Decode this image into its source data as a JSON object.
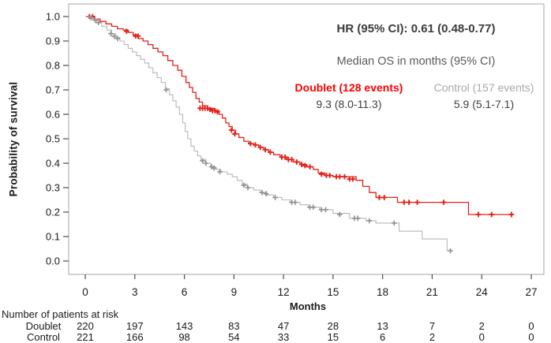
{
  "annotations": {
    "hr": "HR (95% CI): 0.61 (0.48-0.77)",
    "median_header": "Median OS in months (95% CI)",
    "doublet_label": "Doublet (128 events)",
    "doublet_median": "9.3 (8.0-11.3)",
    "control_label": "Control (157 events)",
    "control_median": "5.9 (5.1-7.1)"
  },
  "colors": {
    "doublet": "#e2231a",
    "doublet_text": "#ff0000",
    "control": "#b7b7b7",
    "control_censor": "#8f8f8f",
    "control_text": "#a9a9a9",
    "axis": "#4d4d4d",
    "box_border": "#a6a6a6"
  },
  "risk_table": {
    "title": "Number of patients at risk",
    "rows": [
      {
        "label": "Doublet",
        "counts": [
          220,
          197,
          143,
          83,
          47,
          28,
          13,
          7,
          2,
          0
        ]
      },
      {
        "label": "Control",
        "counts": [
          221,
          166,
          98,
          54,
          33,
          15,
          6,
          2,
          0,
          0
        ]
      }
    ]
  },
  "chart_data": {
    "type": "line",
    "subtype": "kaplan-meier-step",
    "title": "",
    "xlabel": "Months",
    "ylabel": "Probability of survival",
    "xlim": [
      0,
      27
    ],
    "ylim": [
      0.0,
      1.0
    ],
    "x_ticks": [
      0,
      3,
      6,
      9,
      12,
      15,
      18,
      21,
      24,
      27
    ],
    "y_ticks": [
      1.0,
      0.9,
      0.8,
      0.7,
      0.6,
      0.5,
      0.4,
      0.3,
      0.2,
      0.1,
      0.0
    ],
    "grid": false,
    "legend_position": "none",
    "series": [
      {
        "name": "Doublet",
        "events": 128,
        "median_os": "9.3 (8.0-11.3)",
        "hr_vs_control": "0.61 (0.48-0.77)",
        "step_points": [
          [
            0,
            1.0
          ],
          [
            0.55,
            0.99
          ],
          [
            0.9,
            0.98
          ],
          [
            1.25,
            0.97
          ],
          [
            1.6,
            0.96
          ],
          [
            1.95,
            0.95
          ],
          [
            2.3,
            0.945
          ],
          [
            2.6,
            0.935
          ],
          [
            2.9,
            0.925
          ],
          [
            3.2,
            0.91
          ],
          [
            3.5,
            0.9
          ],
          [
            3.8,
            0.885
          ],
          [
            4.1,
            0.87
          ],
          [
            4.4,
            0.855
          ],
          [
            4.7,
            0.84
          ],
          [
            5.0,
            0.82
          ],
          [
            5.3,
            0.8
          ],
          [
            5.6,
            0.78
          ],
          [
            5.85,
            0.755
          ],
          [
            6.1,
            0.73
          ],
          [
            6.3,
            0.71
          ],
          [
            6.5,
            0.69
          ],
          [
            6.7,
            0.665
          ],
          [
            6.9,
            0.65
          ],
          [
            7.1,
            0.635
          ],
          [
            7.4,
            0.625
          ],
          [
            7.8,
            0.615
          ],
          [
            8.1,
            0.6
          ],
          [
            8.3,
            0.585
          ],
          [
            8.5,
            0.565
          ],
          [
            8.7,
            0.55
          ],
          [
            8.9,
            0.535
          ],
          [
            9.1,
            0.52
          ],
          [
            9.3,
            0.505
          ],
          [
            9.6,
            0.49
          ],
          [
            9.9,
            0.48
          ],
          [
            10.2,
            0.475
          ],
          [
            10.5,
            0.465
          ],
          [
            10.8,
            0.455
          ],
          [
            11.1,
            0.445
          ],
          [
            11.4,
            0.435
          ],
          [
            11.8,
            0.425
          ],
          [
            12.2,
            0.415
          ],
          [
            12.6,
            0.405
          ],
          [
            13.0,
            0.395
          ],
          [
            13.4,
            0.385
          ],
          [
            13.8,
            0.375
          ],
          [
            14.1,
            0.36
          ],
          [
            14.5,
            0.35
          ],
          [
            15.0,
            0.345
          ],
          [
            16.4,
            0.33
          ],
          [
            16.8,
            0.305
          ],
          [
            17.2,
            0.28
          ],
          [
            17.6,
            0.26
          ],
          [
            18.9,
            0.24
          ],
          [
            23.2,
            0.19
          ],
          [
            25.9,
            0.19
          ]
        ],
        "censor_points": [
          [
            0.25,
            1.0
          ],
          [
            0.45,
            1.0
          ],
          [
            2.5,
            0.94
          ],
          [
            3.05,
            0.92
          ],
          [
            3.2,
            0.92
          ],
          [
            6.95,
            0.625
          ],
          [
            7.1,
            0.625
          ],
          [
            7.25,
            0.625
          ],
          [
            7.4,
            0.625
          ],
          [
            7.55,
            0.62
          ],
          [
            7.7,
            0.615
          ],
          [
            7.85,
            0.615
          ],
          [
            8.0,
            0.61
          ],
          [
            8.85,
            0.535
          ],
          [
            9.05,
            0.52
          ],
          [
            10.0,
            0.48
          ],
          [
            10.3,
            0.475
          ],
          [
            10.6,
            0.465
          ],
          [
            10.9,
            0.455
          ],
          [
            11.2,
            0.445
          ],
          [
            11.9,
            0.425
          ],
          [
            12.1,
            0.425
          ],
          [
            12.3,
            0.415
          ],
          [
            12.5,
            0.415
          ],
          [
            12.8,
            0.405
          ],
          [
            13.1,
            0.395
          ],
          [
            13.3,
            0.39
          ],
          [
            13.6,
            0.385
          ],
          [
            14.3,
            0.355
          ],
          [
            14.6,
            0.35
          ],
          [
            14.8,
            0.35
          ],
          [
            15.2,
            0.345
          ],
          [
            15.4,
            0.345
          ],
          [
            15.7,
            0.345
          ],
          [
            16.0,
            0.335
          ],
          [
            16.2,
            0.335
          ],
          [
            17.8,
            0.26
          ],
          [
            18.1,
            0.26
          ],
          [
            19.3,
            0.24
          ],
          [
            19.6,
            0.24
          ],
          [
            20.1,
            0.24
          ],
          [
            21.7,
            0.24
          ],
          [
            23.8,
            0.19
          ],
          [
            24.6,
            0.19
          ],
          [
            25.8,
            0.19
          ]
        ]
      },
      {
        "name": "Control",
        "events": 157,
        "median_os": "5.9 (5.1-7.1)",
        "step_points": [
          [
            0,
            1.0
          ],
          [
            0.4,
            0.99
          ],
          [
            0.7,
            0.975
          ],
          [
            1.0,
            0.96
          ],
          [
            1.3,
            0.945
          ],
          [
            1.6,
            0.93
          ],
          [
            1.85,
            0.915
          ],
          [
            2.1,
            0.9
          ],
          [
            2.35,
            0.885
          ],
          [
            2.6,
            0.87
          ],
          [
            2.85,
            0.855
          ],
          [
            3.1,
            0.84
          ],
          [
            3.35,
            0.825
          ],
          [
            3.6,
            0.81
          ],
          [
            3.85,
            0.79
          ],
          [
            4.1,
            0.77
          ],
          [
            4.35,
            0.75
          ],
          [
            4.6,
            0.73
          ],
          [
            4.85,
            0.705
          ],
          [
            5.1,
            0.68
          ],
          [
            5.3,
            0.655
          ],
          [
            5.5,
            0.63
          ],
          [
            5.7,
            0.6
          ],
          [
            5.9,
            0.565
          ],
          [
            6.05,
            0.53
          ],
          [
            6.2,
            0.5
          ],
          [
            6.4,
            0.47
          ],
          [
            6.6,
            0.45
          ],
          [
            6.8,
            0.43
          ],
          [
            7.0,
            0.415
          ],
          [
            7.3,
            0.4
          ],
          [
            7.6,
            0.385
          ],
          [
            7.9,
            0.375
          ],
          [
            8.2,
            0.365
          ],
          [
            8.6,
            0.355
          ],
          [
            8.9,
            0.345
          ],
          [
            9.2,
            0.33
          ],
          [
            9.5,
            0.315
          ],
          [
            9.8,
            0.3
          ],
          [
            10.2,
            0.29
          ],
          [
            10.6,
            0.28
          ],
          [
            11.0,
            0.27
          ],
          [
            11.4,
            0.26
          ],
          [
            11.9,
            0.25
          ],
          [
            12.4,
            0.24
          ],
          [
            13.0,
            0.23
          ],
          [
            13.5,
            0.22
          ],
          [
            14.2,
            0.21
          ],
          [
            15.0,
            0.195
          ],
          [
            16.0,
            0.175
          ],
          [
            17.0,
            0.165
          ],
          [
            17.6,
            0.155
          ],
          [
            19.0,
            0.122
          ],
          [
            20.4,
            0.09
          ],
          [
            21.9,
            0.042
          ],
          [
            22.2,
            0.042
          ]
        ],
        "censor_points": [
          [
            0.35,
            0.995
          ],
          [
            0.6,
            0.985
          ],
          [
            0.8,
            0.975
          ],
          [
            1.55,
            0.93
          ],
          [
            1.75,
            0.92
          ],
          [
            1.95,
            0.91
          ],
          [
            4.9,
            0.7
          ],
          [
            7.1,
            0.41
          ],
          [
            7.3,
            0.4
          ],
          [
            7.65,
            0.385
          ],
          [
            7.8,
            0.38
          ],
          [
            8.15,
            0.365
          ],
          [
            9.6,
            0.31
          ],
          [
            9.85,
            0.3
          ],
          [
            10.7,
            0.28
          ],
          [
            10.95,
            0.275
          ],
          [
            11.5,
            0.26
          ],
          [
            12.5,
            0.24
          ],
          [
            12.7,
            0.24
          ],
          [
            13.6,
            0.22
          ],
          [
            13.8,
            0.22
          ],
          [
            14.3,
            0.21
          ],
          [
            14.55,
            0.21
          ],
          [
            15.4,
            0.19
          ],
          [
            16.3,
            0.175
          ],
          [
            16.5,
            0.175
          ],
          [
            17.2,
            0.165
          ],
          [
            18.7,
            0.155
          ],
          [
            22.1,
            0.042
          ]
        ]
      }
    ]
  }
}
